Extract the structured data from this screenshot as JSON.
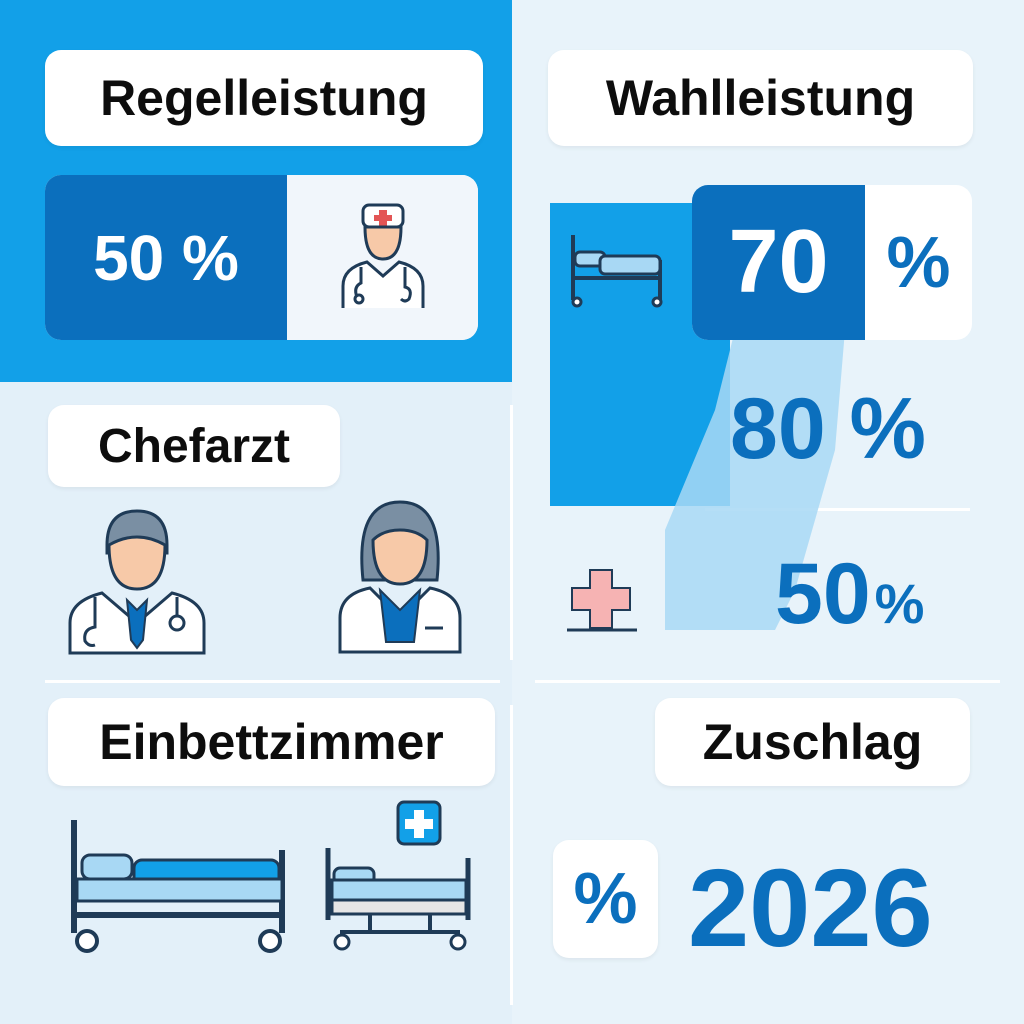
{
  "regelleistung": {
    "title": "Regelleistung",
    "value": "50 %"
  },
  "wahlleistung": {
    "title": "Wahlleistung",
    "value_number": "70",
    "value_unit": "%",
    "second_value": "80 %",
    "third_value_number": "50",
    "third_value_unit": "%"
  },
  "chefarzt": {
    "title": "Chefarzt"
  },
  "einbettzimmer": {
    "title": "Einbettzimmer"
  },
  "zuschlag": {
    "title": "Zuschlag",
    "percent_symbol": "%",
    "year": "2026"
  },
  "colors": {
    "brand_blue": "#0b6fbd",
    "light_blue": "#12a0e8",
    "background": "#e3f0f9",
    "accent_red": "#f2a3a3"
  },
  "icons": [
    "doctor-with-cap-icon",
    "hospital-bed-icon",
    "male-doctor-icon",
    "female-doctor-icon",
    "medical-cross-icon",
    "single-bed-icon",
    "hospital-bed-with-cross-icon"
  ]
}
